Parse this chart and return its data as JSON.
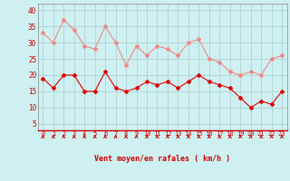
{
  "x": [
    0,
    1,
    2,
    3,
    4,
    5,
    6,
    7,
    8,
    9,
    10,
    11,
    12,
    13,
    14,
    15,
    16,
    17,
    18,
    19,
    20,
    21,
    22,
    23
  ],
  "rafales": [
    33,
    30,
    37,
    34,
    29,
    28,
    35,
    30,
    23,
    29,
    26,
    29,
    28,
    26,
    30,
    31,
    25,
    24,
    21,
    20,
    21,
    20,
    25,
    26
  ],
  "moyen": [
    19,
    16,
    20,
    20,
    15,
    15,
    21,
    16,
    15,
    16,
    18,
    17,
    18,
    16,
    18,
    20,
    18,
    17,
    16,
    13,
    10,
    12,
    11,
    15
  ],
  "bg_color": "#cff0f0",
  "grid_color": "#aacccc",
  "line_color_rafales": "#f08888",
  "line_color_moyen": "#dd0000",
  "xlabel": "Vent moyen/en rafales ( km/h )",
  "ylabel_ticks": [
    5,
    10,
    15,
    20,
    25,
    30,
    35,
    40
  ],
  "ylim": [
    3,
    42
  ],
  "xlim": [
    -0.5,
    23.5
  ],
  "tick_color": "#cc0000",
  "label_color": "#cc0000",
  "spine_color": "#888888"
}
